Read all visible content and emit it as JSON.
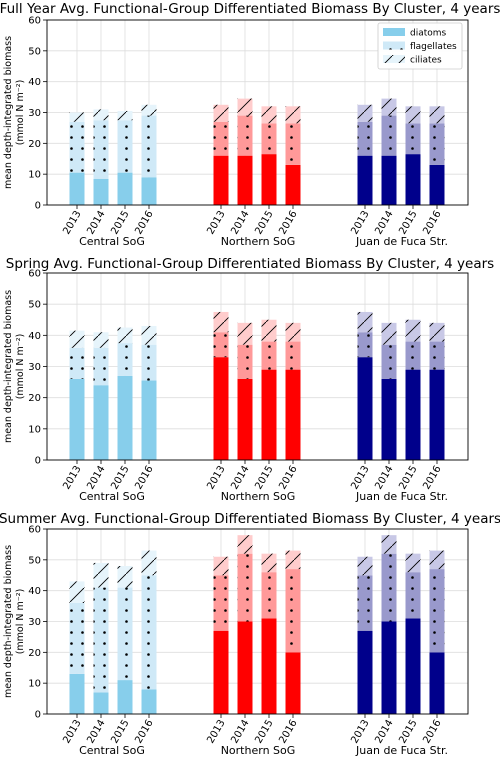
{
  "chart_data": [
    {
      "type": "bar",
      "stacked": true,
      "title": "Full Year Avg. Functional-Group Differentiated Biomass By Cluster, 4 years",
      "ylabel": [
        "mean depth-integrated biomass",
        "(mmol N m⁻²)"
      ],
      "ylim": [
        0,
        60
      ],
      "yticks": [
        0,
        10,
        20,
        30,
        40,
        50,
        60
      ],
      "grid": true,
      "legend": {
        "position": "top-right",
        "entries": [
          "diatoms",
          "flagellates",
          "ciliates"
        ]
      },
      "groups": [
        {
          "name": "Central SoG",
          "colors": [
            "#87ceeb",
            "#cfe9f7",
            "#e6f4fb"
          ]
        },
        {
          "name": "Northern SoG",
          "colors": [
            "#ff0000",
            "#ff9999",
            "#ffcccc"
          ]
        },
        {
          "name": "Juan de Fuca Str.",
          "colors": [
            "#00008b",
            "#9999cc",
            "#c8c8e6"
          ]
        }
      ],
      "years": [
        "2013",
        "2014",
        "2015",
        "2016"
      ],
      "series": [
        {
          "name": "diatoms",
          "values": [
            [
              10.5,
              8.5,
              10.5,
              9.0
            ],
            [
              16.0,
              16.0,
              16.5,
              13.0
            ],
            [
              16.0,
              16.0,
              16.5,
              13.0
            ]
          ]
        },
        {
          "name": "flagellates",
          "values": [
            [
              16.5,
              19.0,
              17.0,
              20.0
            ],
            [
              11.0,
              13.0,
              10.0,
              13.5
            ],
            [
              11.0,
              13.0,
              10.0,
              13.5
            ]
          ]
        },
        {
          "name": "ciliates",
          "values": [
            [
              3.0,
              3.5,
              3.0,
              3.5
            ],
            [
              5.5,
              5.5,
              5.5,
              5.5
            ],
            [
              5.5,
              5.5,
              5.5,
              5.5
            ]
          ]
        }
      ]
    },
    {
      "type": "bar",
      "stacked": true,
      "title": "Spring Avg. Functional-Group Differentiated Biomass By Cluster, 4 years",
      "ylabel": [
        "mean depth-integrated biomass",
        "(mmol N m⁻²)"
      ],
      "ylim": [
        0,
        60
      ],
      "yticks": [
        0,
        10,
        20,
        30,
        40,
        50,
        60
      ],
      "grid": true,
      "groups": [
        {
          "name": "Central SoG",
          "colors": [
            "#87ceeb",
            "#cfe9f7",
            "#e6f4fb"
          ]
        },
        {
          "name": "Northern SoG",
          "colors": [
            "#ff0000",
            "#ff9999",
            "#ffcccc"
          ]
        },
        {
          "name": "Juan de Fuca Str.",
          "colors": [
            "#00008b",
            "#9999cc",
            "#c8c8e6"
          ]
        }
      ],
      "years": [
        "2013",
        "2014",
        "2015",
        "2016"
      ],
      "series": [
        {
          "name": "diatoms",
          "values": [
            [
              26.0,
              24.0,
              27.0,
              25.5
            ],
            [
              33.0,
              26.0,
              29.0,
              29.0
            ],
            [
              33.0,
              26.0,
              29.0,
              29.0
            ]
          ]
        },
        {
          "name": "flagellates",
          "values": [
            [
              10.0,
              12.0,
              10.5,
              11.5
            ],
            [
              8.0,
              11.0,
              9.0,
              9.0
            ],
            [
              8.0,
              11.0,
              9.0,
              9.0
            ]
          ]
        },
        {
          "name": "ciliates",
          "values": [
            [
              5.5,
              5.0,
              5.0,
              6.0
            ],
            [
              6.5,
              7.0,
              7.0,
              6.0
            ],
            [
              6.5,
              7.0,
              7.0,
              6.0
            ]
          ]
        }
      ]
    },
    {
      "type": "bar",
      "stacked": true,
      "title": "Summer Avg. Functional-Group Differentiated Biomass By Cluster, 4 years",
      "ylabel": [
        "mean depth-integrated biomass",
        "(mmol N m⁻²)"
      ],
      "ylim": [
        0,
        60
      ],
      "yticks": [
        0,
        10,
        20,
        30,
        40,
        50,
        60
      ],
      "grid": true,
      "groups": [
        {
          "name": "Central SoG",
          "colors": [
            "#87ceeb",
            "#cfe9f7",
            "#e6f4fb"
          ]
        },
        {
          "name": "Northern SoG",
          "colors": [
            "#ff0000",
            "#ff9999",
            "#ffcccc"
          ]
        },
        {
          "name": "Juan de Fuca Str.",
          "colors": [
            "#00008b",
            "#9999cc",
            "#c8c8e6"
          ]
        }
      ],
      "years": [
        "2013",
        "2014",
        "2015",
        "2016"
      ],
      "series": [
        {
          "name": "diatoms",
          "values": [
            [
              13.0,
              7.0,
              11.0,
              8.0
            ],
            [
              27.0,
              30.0,
              31.0,
              20.0
            ],
            [
              27.0,
              30.0,
              31.0,
              20.0
            ]
          ]
        },
        {
          "name": "flagellates",
          "values": [
            [
              23.0,
              34.0,
              30.0,
              37.0
            ],
            [
              18.0,
              22.0,
              15.0,
              27.0
            ],
            [
              18.0,
              22.0,
              15.0,
              27.0
            ]
          ]
        },
        {
          "name": "ciliates",
          "values": [
            [
              7.0,
              8.0,
              7.0,
              8.0
            ],
            [
              6.0,
              6.0,
              6.0,
              6.0
            ],
            [
              6.0,
              6.0,
              6.0,
              6.0
            ]
          ]
        }
      ]
    }
  ]
}
